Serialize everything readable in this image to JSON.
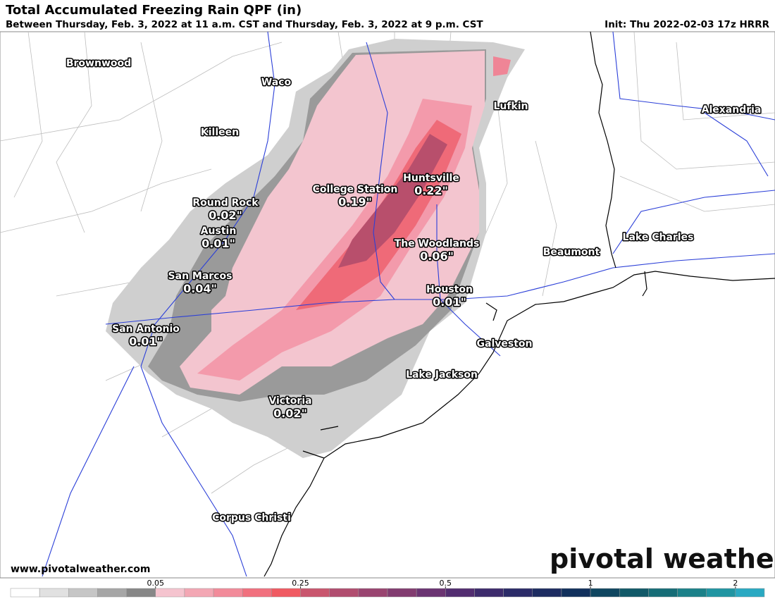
{
  "header": {
    "title": "Total Accumulated Freezing Rain QPF (in)",
    "subtitle": "Between Thursday, Feb. 3, 2022 at 11 a.m. CST and Thursday, Feb. 3, 2022 at 9 p.m. CST",
    "init": "Init: Thu 2022-02-03 17z HRRR"
  },
  "cities": [
    {
      "name": "Brownwood"
    },
    {
      "name": "Waco"
    },
    {
      "name": "Lufkin"
    },
    {
      "name": "Alexandria"
    },
    {
      "name": "Killeen"
    },
    {
      "name": "Huntsville",
      "amount": "0.22\""
    },
    {
      "name": "College Station",
      "amount": "0.19\""
    },
    {
      "name": "Round Rock",
      "amount": "0.02\""
    },
    {
      "name": "Austin",
      "amount": "0.01\""
    },
    {
      "name": "Lake Charles"
    },
    {
      "name": "The Woodlands",
      "amount": "0.06\""
    },
    {
      "name": "Beaumont"
    },
    {
      "name": "San Marcos",
      "amount": "0.04\""
    },
    {
      "name": "Houston",
      "amount": "0.01\""
    },
    {
      "name": "San Antonio",
      "amount": "0.01\""
    },
    {
      "name": "Galveston"
    },
    {
      "name": "Lake Jackson"
    },
    {
      "name": "Victoria",
      "amount": "0.02\""
    },
    {
      "name": "Corpus Christi"
    }
  ],
  "colorbar": {
    "colors": [
      "#ffffff",
      "#e1e1e1",
      "#c6c6c6",
      "#a6a6a6",
      "#878787",
      "#f5c4cf",
      "#f3a7b4",
      "#f28b9a",
      "#f1707e",
      "#f05a62",
      "#c9566e",
      "#b14d6f",
      "#994470",
      "#823c70",
      "#6b3472",
      "#522d70",
      "#3d2b6c",
      "#2b2b68",
      "#1d2c61",
      "#11305c",
      "#0f4660",
      "#115968",
      "#166d77",
      "#1b8189",
      "#2195a2",
      "#2aa9c2"
    ],
    "ticks": [
      0.05,
      0.25,
      0.5,
      1,
      2
    ]
  },
  "footer": {
    "url": "www.pivotalweather.com",
    "logo": "pivotal weather"
  }
}
